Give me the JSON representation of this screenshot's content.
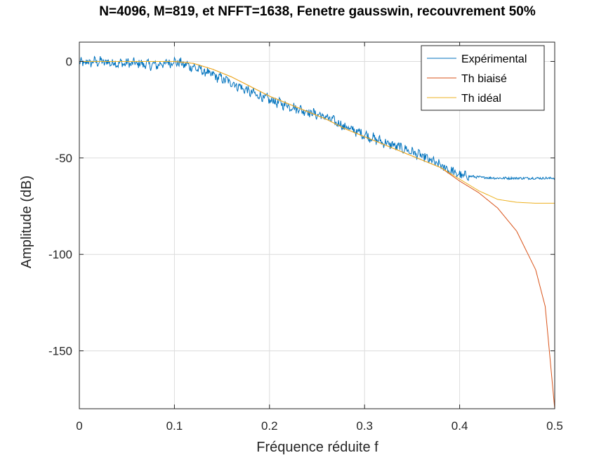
{
  "chart_data": {
    "type": "line",
    "title": "N=4096, M=819, et NFFT=1638, Fenetre gausswin, recouvrement 50%",
    "xlabel": "Fréquence réduite f",
    "ylabel": "Amplitude (dB)",
    "xlim": [
      0,
      0.5
    ],
    "ylim": [
      -180,
      10
    ],
    "xticks": [
      0,
      0.1,
      0.2,
      0.3,
      0.4,
      0.5
    ],
    "xtick_labels": [
      "0",
      "0.1",
      "0.2",
      "0.3",
      "0.4",
      "0.5"
    ],
    "yticks": [
      0,
      -50,
      -100,
      -150
    ],
    "ytick_labels": [
      "0",
      "-50",
      "-100",
      "-150"
    ],
    "grid": true,
    "legend_position": "top-right",
    "series": [
      {
        "name": "Expérimental",
        "color": "#0072BD",
        "x": [
          0,
          0.02,
          0.04,
          0.06,
          0.08,
          0.1,
          0.12,
          0.14,
          0.16,
          0.18,
          0.2,
          0.22,
          0.24,
          0.26,
          0.28,
          0.3,
          0.32,
          0.34,
          0.36,
          0.38,
          0.4,
          0.42,
          0.44,
          0.46,
          0.48,
          0.5
        ],
        "y": [
          -1,
          0,
          -1,
          -1,
          -2,
          0,
          -3,
          -7,
          -11,
          -16,
          -20,
          -23,
          -26,
          -29,
          -34,
          -38,
          -42,
          -45,
          -49,
          -54,
          -59,
          -60,
          -60.5,
          -60.5,
          -60.5,
          -60.5
        ]
      },
      {
        "name": "Th biaisé",
        "color": "#D95319",
        "x": [
          0,
          0.02,
          0.04,
          0.06,
          0.08,
          0.1,
          0.12,
          0.14,
          0.16,
          0.18,
          0.2,
          0.22,
          0.24,
          0.26,
          0.28,
          0.3,
          0.32,
          0.34,
          0.36,
          0.38,
          0.4,
          0.42,
          0.44,
          0.46,
          0.48,
          0.49,
          0.5
        ],
        "y": [
          0,
          0,
          0,
          0,
          0,
          0,
          -1,
          -4,
          -8,
          -13,
          -18,
          -22,
          -26,
          -30,
          -35,
          -39,
          -43,
          -47,
          -51,
          -55,
          -62,
          -68,
          -76,
          -88,
          -108,
          -127,
          -180
        ]
      },
      {
        "name": "Th idéal",
        "color": "#EDB120",
        "x": [
          0,
          0.02,
          0.04,
          0.06,
          0.08,
          0.1,
          0.12,
          0.14,
          0.16,
          0.18,
          0.2,
          0.22,
          0.24,
          0.26,
          0.28,
          0.3,
          0.32,
          0.34,
          0.36,
          0.38,
          0.4,
          0.42,
          0.44,
          0.46,
          0.48,
          0.5
        ],
        "y": [
          0,
          0,
          0,
          0,
          0,
          0,
          -1,
          -4,
          -8,
          -13,
          -18,
          -22,
          -26,
          -30,
          -35,
          -39,
          -43,
          -47,
          -51,
          -55,
          -61,
          -67,
          -71.5,
          -73,
          -73.5,
          -73.5
        ]
      }
    ]
  }
}
